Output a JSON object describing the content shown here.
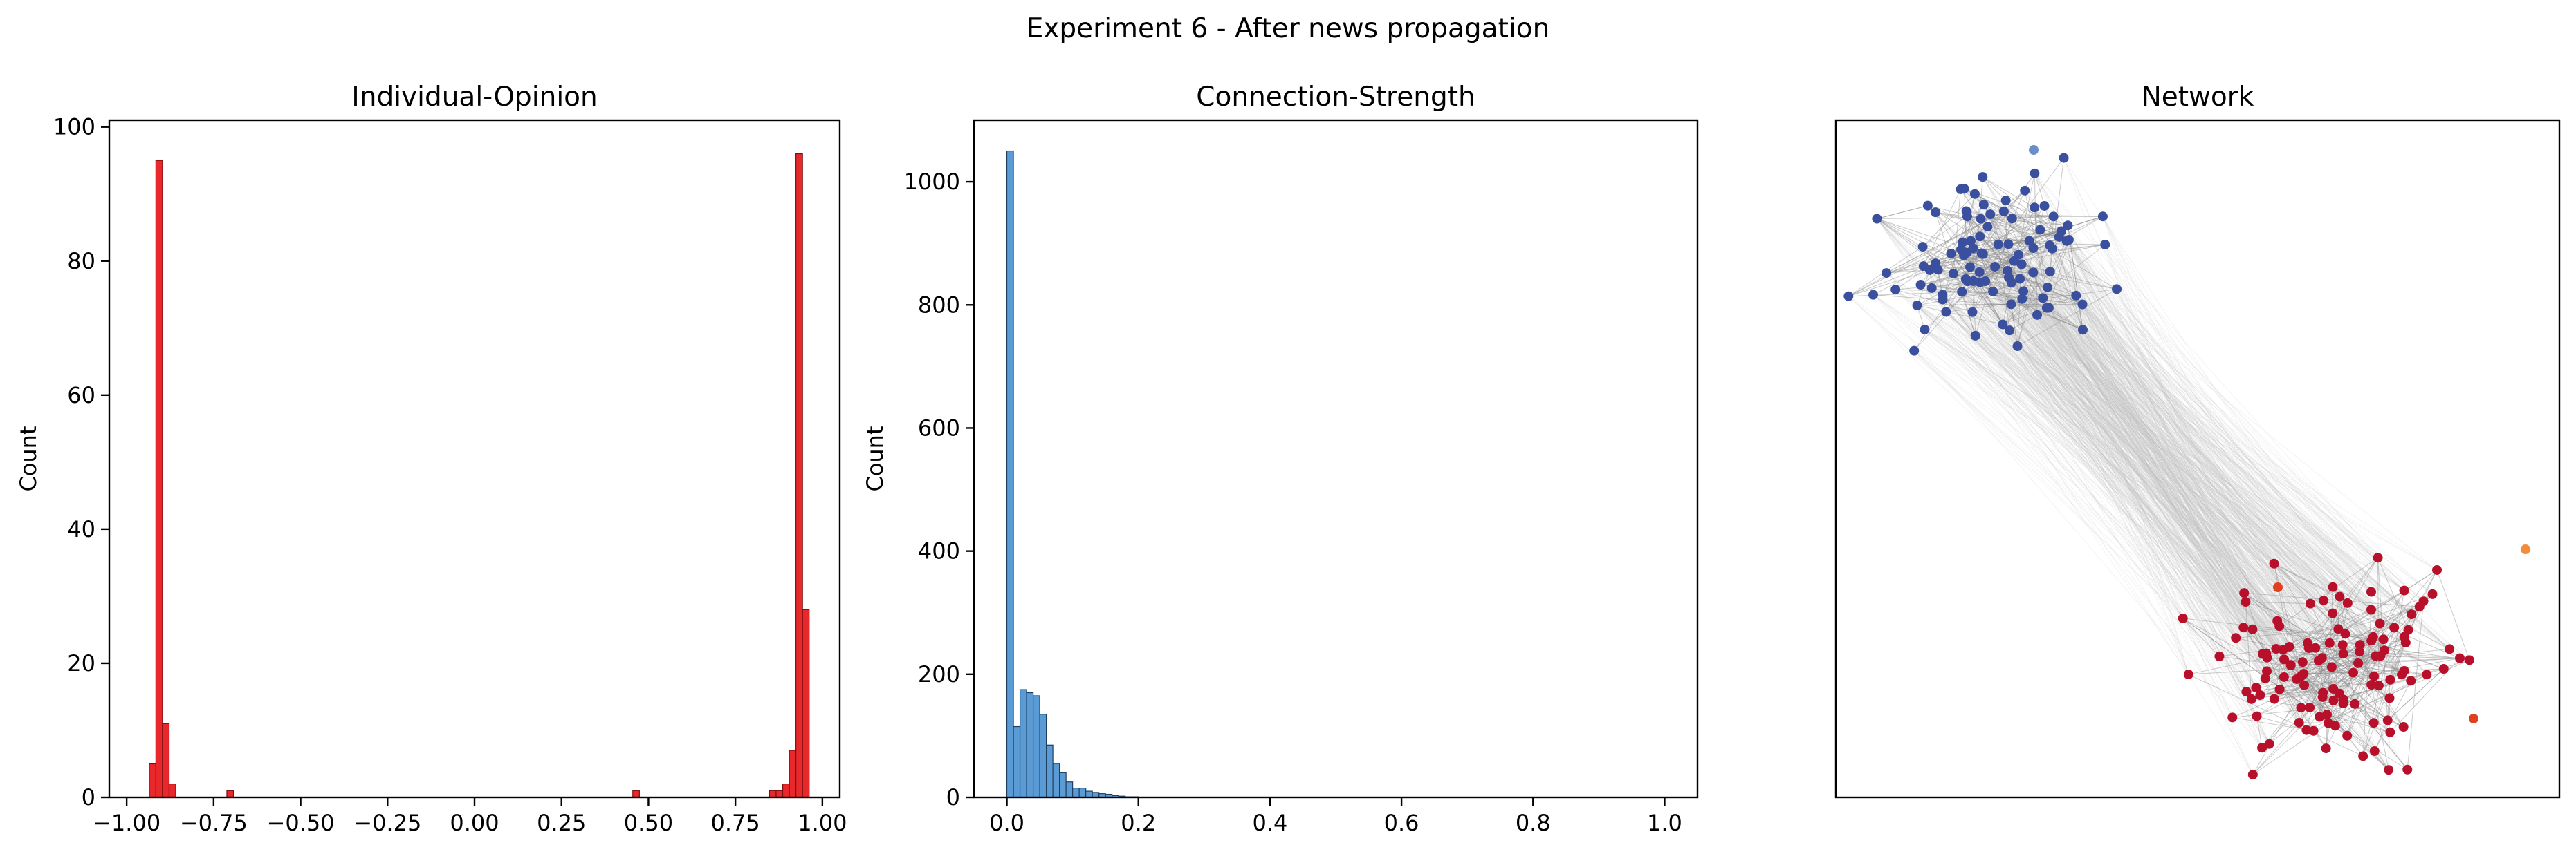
{
  "figure": {
    "suptitle": "Experiment 6 - After news propagation"
  },
  "chart_data": [
    {
      "type": "bar",
      "title": "Individual-Opinion",
      "xlabel": "",
      "ylabel": "Count",
      "xlim": [
        -1.05,
        1.05
      ],
      "ylim": [
        0,
        101
      ],
      "xticks": [
        -1.0,
        -0.75,
        -0.5,
        -0.25,
        0.0,
        0.25,
        0.5,
        0.75,
        1.0
      ],
      "xticklabels": [
        "−1.00",
        "−0.75",
        "−0.50",
        "−0.25",
        "0.00",
        "0.25",
        "0.50",
        "0.75",
        "1.00"
      ],
      "yticks": [
        0,
        20,
        40,
        60,
        80,
        100
      ],
      "yticklabels": [
        "0",
        "20",
        "40",
        "60",
        "80",
        "100"
      ],
      "bar_color": "#e8282b",
      "bar_edge": "#7a1010",
      "bins": [
        {
          "x0": -0.935,
          "x1": -0.916,
          "count": 5
        },
        {
          "x0": -0.916,
          "x1": -0.897,
          "count": 95
        },
        {
          "x0": -0.897,
          "x1": -0.878,
          "count": 11
        },
        {
          "x0": -0.878,
          "x1": -0.859,
          "count": 2
        },
        {
          "x0": -0.712,
          "x1": -0.693,
          "count": 1
        },
        {
          "x0": 0.455,
          "x1": 0.474,
          "count": 1
        },
        {
          "x0": 0.848,
          "x1": 0.867,
          "count": 1
        },
        {
          "x0": 0.867,
          "x1": 0.886,
          "count": 1
        },
        {
          "x0": 0.886,
          "x1": 0.905,
          "count": 2
        },
        {
          "x0": 0.905,
          "x1": 0.924,
          "count": 7
        },
        {
          "x0": 0.924,
          "x1": 0.943,
          "count": 96
        },
        {
          "x0": 0.943,
          "x1": 0.962,
          "count": 28
        }
      ]
    },
    {
      "type": "bar",
      "title": "Connection-Strength",
      "xlabel": "",
      "ylabel": "Count",
      "xlim": [
        -0.05,
        1.05
      ],
      "ylim": [
        0,
        1100
      ],
      "xticks": [
        0.0,
        0.2,
        0.4,
        0.6,
        0.8,
        1.0
      ],
      "xticklabels": [
        "0.0",
        "0.2",
        "0.4",
        "0.6",
        "0.8",
        "1.0"
      ],
      "yticks": [
        0,
        200,
        400,
        600,
        800,
        1000
      ],
      "yticklabels": [
        "0",
        "200",
        "400",
        "600",
        "800",
        "1000"
      ],
      "bar_color": "#5b9bd5",
      "bar_edge": "#1f3f5f",
      "bin_start": 0.0,
      "bin_width": 0.01,
      "counts": [
        1050,
        115,
        175,
        170,
        165,
        135,
        85,
        55,
        40,
        25,
        15,
        15,
        10,
        8,
        6,
        5,
        3,
        2,
        1,
        1
      ]
    },
    {
      "type": "network",
      "title": "Network",
      "clusters": [
        {
          "color": "#3a4f9e",
          "nodes": 100,
          "label_side": "top-left"
        },
        {
          "color": "#b8102a",
          "nodes": 120,
          "label_side": "bottom-right"
        }
      ],
      "outlier_colors": [
        "#6a8fc8",
        "#e0401e",
        "#f28c3a"
      ],
      "edge_color": "#bdbdbd"
    }
  ]
}
